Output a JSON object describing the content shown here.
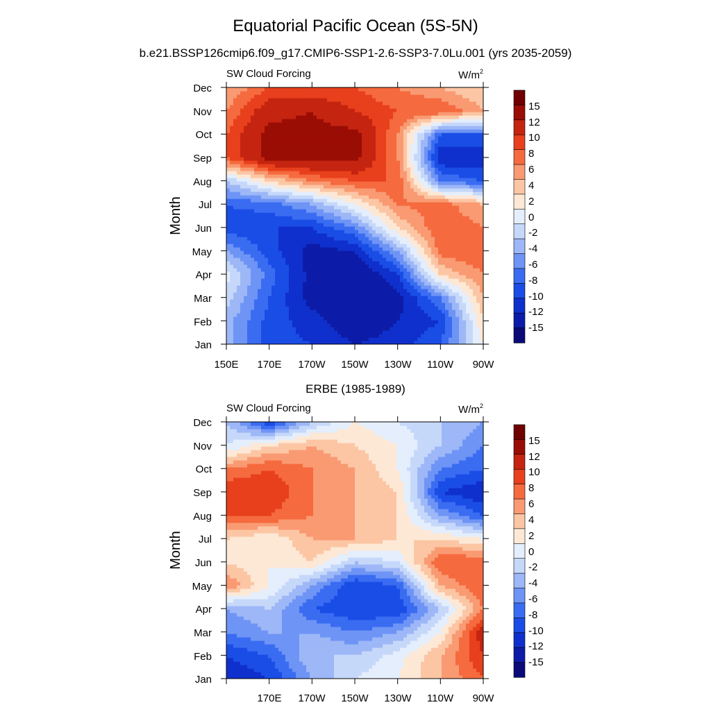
{
  "figure": {
    "title": "Equatorial Pacific Ocean (5S-5N)",
    "top_panel_title": "b.e21.BSSP126cmip6.f09_g17.CMIP6-SSP1-2.6-SSP3-7.0Lu.001 (yrs 2035-2059)",
    "bottom_panel_title": "ERBE (1985-1989)"
  },
  "panels": [
    {
      "variable_label": "SW Cloud Forcing",
      "units_label": "W/m",
      "units_superscript": "2",
      "ylabel": "Month",
      "x_tick_labels": [
        "150E",
        "170E",
        "170W",
        "150W",
        "130W",
        "110W",
        "90W"
      ],
      "y_tick_labels": [
        "Jan",
        "Feb",
        "Mar",
        "Apr",
        "May",
        "Jun",
        "Jul",
        "Aug",
        "Sep",
        "Oct",
        "Nov",
        "Dec"
      ]
    },
    {
      "variable_label": "SW Cloud Forcing",
      "units_label": "W/m",
      "units_superscript": "2",
      "ylabel": "Month",
      "x_tick_labels": [
        "",
        "170E",
        "170W",
        "150W",
        "130W",
        "110W",
        "90W"
      ],
      "y_tick_labels": [
        "Jan",
        "Feb",
        "Mar",
        "Apr",
        "May",
        "Jun",
        "Jul",
        "Aug",
        "Sep",
        "Oct",
        "Nov",
        "Dec"
      ]
    }
  ],
  "colorbar": {
    "labels": [
      "15",
      "12",
      "10",
      "8",
      "6",
      "4",
      "2",
      "0",
      "-2",
      "-4",
      "-6",
      "-8",
      "-10",
      "-12",
      "-15"
    ],
    "colors": [
      "#0a0a78",
      "#0d1ca8",
      "#0f30cc",
      "#1a4de6",
      "#3a6cf2",
      "#6e94f5",
      "#9db7f7",
      "#c6d8fa",
      "#e4eefc",
      "#fde8d6",
      "#fcc6a4",
      "#f99a72",
      "#f56a3e",
      "#e8401c",
      "#c52410",
      "#9a0d05",
      "#700000"
    ]
  },
  "chart_data": [
    {
      "type": "heatmap",
      "title": "b.e21.BSSP126cmip6.f09_g17.CMIP6-SSP1-2.6-SSP3-7.0Lu.001 (yrs 2035-2059)",
      "xlabel": "",
      "ylabel": "Month",
      "x": [
        "150E",
        "170E",
        "170W",
        "150W",
        "130W",
        "110W",
        "90W"
      ],
      "y": [
        "Jan",
        "Feb",
        "Mar",
        "Apr",
        "May",
        "Jun",
        "Jul",
        "Aug",
        "Sep",
        "Oct",
        "Nov",
        "Dec"
      ],
      "z_units": "W/m2",
      "z": [
        [
          -3,
          -9,
          -10,
          -12,
          -11,
          -8,
          2
        ],
        [
          -3,
          -9,
          -11,
          -14,
          -12,
          -10,
          4
        ],
        [
          -1,
          -8,
          -13,
          -15,
          -13,
          -6,
          6
        ],
        [
          1,
          -7,
          -13,
          -15,
          -10,
          4,
          8
        ],
        [
          -4,
          -9,
          -13,
          -12,
          -4,
          9,
          10
        ],
        [
          -9,
          -10,
          -10,
          -6,
          4,
          10,
          8
        ],
        [
          -8,
          -7,
          -4,
          2,
          8,
          9,
          6
        ],
        [
          -2,
          4,
          8,
          10,
          10,
          -6,
          -8
        ],
        [
          10,
          16,
          16,
          16,
          8,
          -12,
          -12
        ],
        [
          10,
          16,
          16,
          16,
          8,
          -8,
          -8
        ],
        [
          8,
          14,
          15,
          12,
          10,
          10,
          6
        ],
        [
          6,
          10,
          10,
          10,
          8,
          6,
          4
        ]
      ],
      "zlim": [
        -15,
        15
      ]
    },
    {
      "type": "heatmap",
      "title": "ERBE (1985-1989)",
      "xlabel": "",
      "ylabel": "Month",
      "x": [
        "",
        "170E",
        "170W",
        "150W",
        "130W",
        "110W",
        "90W"
      ],
      "y": [
        "Jan",
        "Feb",
        "Mar",
        "Apr",
        "May",
        "Jun",
        "Jul",
        "Aug",
        "Sep",
        "Oct",
        "Nov",
        "Dec"
      ],
      "z_units": "W/m2",
      "z": [
        [
          -12,
          -10,
          -4,
          0,
          2,
          6,
          10
        ],
        [
          -10,
          -8,
          -2,
          -2,
          1,
          6,
          12
        ],
        [
          -6,
          -4,
          -4,
          -6,
          -4,
          2,
          14
        ],
        [
          -4,
          -2,
          -8,
          -10,
          -10,
          -2,
          8
        ],
        [
          8,
          2,
          -4,
          -10,
          -8,
          6,
          10
        ],
        [
          4,
          2,
          4,
          -2,
          0,
          10,
          10
        ],
        [
          4,
          2,
          6,
          6,
          4,
          4,
          2
        ],
        [
          10,
          10,
          8,
          6,
          4,
          -4,
          -8
        ],
        [
          12,
          12,
          8,
          6,
          4,
          -10,
          -12
        ],
        [
          8,
          10,
          8,
          6,
          2,
          -6,
          -8
        ],
        [
          0,
          4,
          6,
          4,
          2,
          -2,
          -6
        ],
        [
          -2,
          -10,
          -2,
          2,
          0,
          -2,
          -4
        ]
      ],
      "zlim": [
        -15,
        15
      ]
    }
  ]
}
